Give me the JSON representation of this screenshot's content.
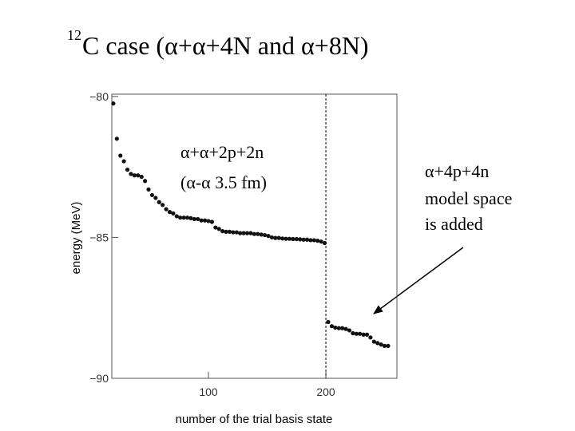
{
  "chart_data": {
    "type": "scatter",
    "title_sup": "12",
    "title": "C case (α+α+4N and α+8N)",
    "xlabel": "number of the trial basis state",
    "ylabel": "energy (MeV)",
    "annotations": [
      "α+α+2p+2n",
      "(α-α 3.5 fm)",
      "α+4p+4n",
      "model space",
      "is added"
    ],
    "xlim": [
      17.7,
      260.5
    ],
    "ylim": [
      -90,
      -79.92
    ],
    "xticks": [
      100,
      200
    ],
    "yticks": [
      {
        "value": -80,
        "label": "−80"
      },
      {
        "value": -85,
        "label": "−85"
      },
      {
        "value": -90,
        "label": "−90"
      }
    ],
    "vline": 200,
    "color": "#111111",
    "x": [
      19,
      22,
      25,
      28,
      31,
      34,
      37,
      40,
      43,
      46,
      49,
      52,
      55,
      58,
      61,
      64,
      67,
      70,
      73,
      76,
      79,
      82,
      85,
      88,
      91,
      94,
      97,
      100,
      103,
      106,
      109,
      112,
      115,
      118,
      121,
      124,
      127,
      130,
      133,
      136,
      139,
      142,
      145,
      148,
      151,
      154,
      157,
      160,
      163,
      166,
      169,
      172,
      175,
      178,
      181,
      184,
      187,
      190,
      193,
      196,
      199,
      202,
      205,
      208,
      211,
      214,
      217,
      220,
      223,
      226,
      229,
      232,
      235,
      238,
      241,
      244,
      247,
      250,
      253
    ],
    "values": [
      -80.25,
      -81.5,
      -82.1,
      -82.3,
      -82.6,
      -82.75,
      -82.8,
      -82.8,
      -82.85,
      -83.0,
      -83.3,
      -83.5,
      -83.6,
      -83.75,
      -83.85,
      -84.0,
      -84.1,
      -84.15,
      -84.25,
      -84.3,
      -84.3,
      -84.3,
      -84.32,
      -84.35,
      -84.35,
      -84.4,
      -84.4,
      -84.42,
      -84.45,
      -84.65,
      -84.7,
      -84.78,
      -84.8,
      -84.8,
      -84.82,
      -84.82,
      -84.85,
      -84.85,
      -84.85,
      -84.85,
      -84.88,
      -84.88,
      -84.9,
      -84.92,
      -84.95,
      -85.0,
      -85.02,
      -85.02,
      -85.04,
      -85.05,
      -85.05,
      -85.06,
      -85.06,
      -85.07,
      -85.08,
      -85.08,
      -85.1,
      -85.1,
      -85.12,
      -85.15,
      -85.2,
      -88.0,
      -88.15,
      -88.2,
      -88.22,
      -88.22,
      -88.25,
      -88.3,
      -88.4,
      -88.42,
      -88.42,
      -88.45,
      -88.45,
      -88.55,
      -88.7,
      -88.75,
      -88.8,
      -88.85,
      -88.85
    ]
  }
}
